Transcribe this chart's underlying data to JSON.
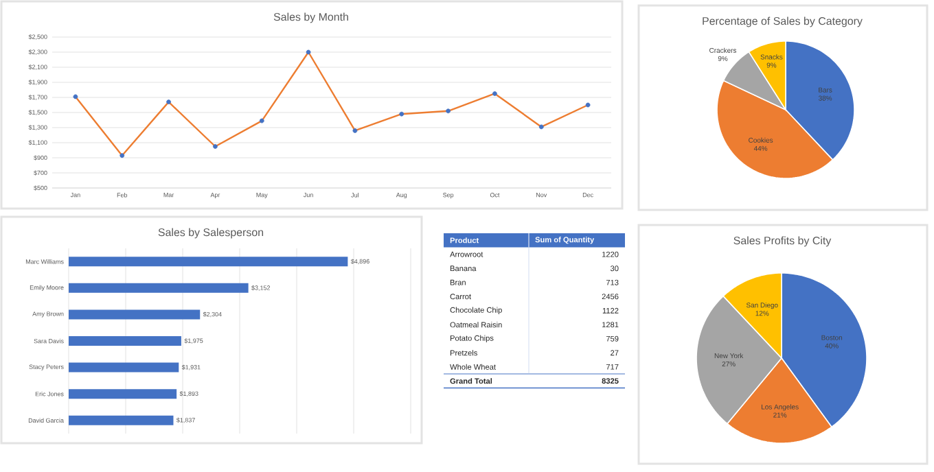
{
  "chart_data": [
    {
      "type": "line",
      "title": "Sales by Month",
      "categories": [
        "Jan",
        "Feb",
        "Mar",
        "Apr",
        "May",
        "Jun",
        "Jul",
        "Aug",
        "Sep",
        "Oct",
        "Nov",
        "Dec"
      ],
      "series": [
        {
          "color": "#ed7d31",
          "colors": [
            "#4472c4",
            "#4472c4",
            "#4472c4",
            "#4472c4",
            "#4472c4",
            "#4472c4",
            "#4472c4",
            "#4472c4",
            "#4472c4",
            "#4472c4",
            "#4472c4",
            "#4472c4"
          ],
          "values": [
            1710,
            930,
            1640,
            1050,
            1390,
            2300,
            1260,
            1480,
            1520,
            1750,
            1310,
            1600
          ]
        }
      ],
      "ylim": [
        500,
        2500
      ],
      "yticks": [
        {
          "value": 500,
          "label": "$500"
        },
        {
          "value": 700,
          "label": "$700"
        },
        {
          "value": 900,
          "label": "$900"
        },
        {
          "value": 1100,
          "label": "$1,100"
        },
        {
          "value": 1300,
          "label": "$1,300"
        },
        {
          "value": 1500,
          "label": "$1,500"
        },
        {
          "value": 1700,
          "label": "$1,700"
        },
        {
          "value": 1900,
          "label": "$1,900"
        },
        {
          "value": 2100,
          "label": "$2,100"
        },
        {
          "value": 2300,
          "label": "$2,300"
        },
        {
          "value": 2500,
          "label": "$2,500"
        }
      ],
      "grid": "y",
      "marker": "circle",
      "line_style": "solid"
    },
    {
      "type": "pie",
      "title": "Percentage of Sales by Category",
      "categories": [
        "Bars",
        "Cookies",
        "Crackers",
        "Snacks"
      ],
      "values": [
        38,
        44,
        9,
        9
      ],
      "value_labels": [
        "38%",
        "44%",
        "9%",
        "9%"
      ],
      "colors": [
        "#4472c4",
        "#ed7d31",
        "#a5a5a5",
        "#ffc000"
      ]
    },
    {
      "type": "bar",
      "title": "Sales by Salesperson",
      "orientation": "horizontal",
      "categories": [
        "Marc Williams",
        "Emily Moore",
        "Amy Brown",
        "Sara Davis",
        "Stacy Peters",
        "Eric Jones",
        "David Garcia"
      ],
      "values": [
        4896,
        3152,
        2304,
        1975,
        1931,
        1893,
        1837
      ],
      "value_labels": [
        "$4,896",
        "$3,152",
        "$2,304",
        "$1,975",
        "$1,931",
        "$1,893",
        "$1,837"
      ],
      "color": "#4472c4",
      "xlim": [
        0,
        6000
      ],
      "xticks": [
        {
          "value": 0,
          "label": null
        },
        {
          "value": 1000,
          "label": null
        },
        {
          "value": 2000,
          "label": null
        },
        {
          "value": 3000,
          "label": null
        },
        {
          "value": 4000,
          "label": null
        },
        {
          "value": 5000,
          "label": null
        },
        {
          "value": 6000,
          "label": null
        }
      ],
      "grid": "x",
      "tick_labels": "y"
    },
    {
      "type": "other",
      "categories": [
        "Arrowroot",
        "Banana",
        "Bran",
        "Carrot",
        "Chocolate Chip",
        "Oatmeal Raisin",
        "Potato Chips",
        "Pretzels",
        "Whole Wheat"
      ],
      "values": [
        1220,
        30,
        713,
        2456,
        1122,
        1281,
        759,
        27,
        717
      ],
      "data_labels": true,
      "annotations": [
        "Product",
        "Sum of Quantity",
        "Grand Total",
        "8325"
      ]
    },
    {
      "type": "pie",
      "title": "Sales Profits by City",
      "categories": [
        "Boston",
        "Los Angeles",
        "New York",
        "San Diego"
      ],
      "values": [
        40,
        21,
        27,
        12
      ],
      "value_labels": [
        "40%",
        "21%",
        "27%",
        "12%"
      ],
      "colors": [
        "#4472c4",
        "#ed7d31",
        "#a5a5a5",
        "#ffc000"
      ]
    }
  ]
}
